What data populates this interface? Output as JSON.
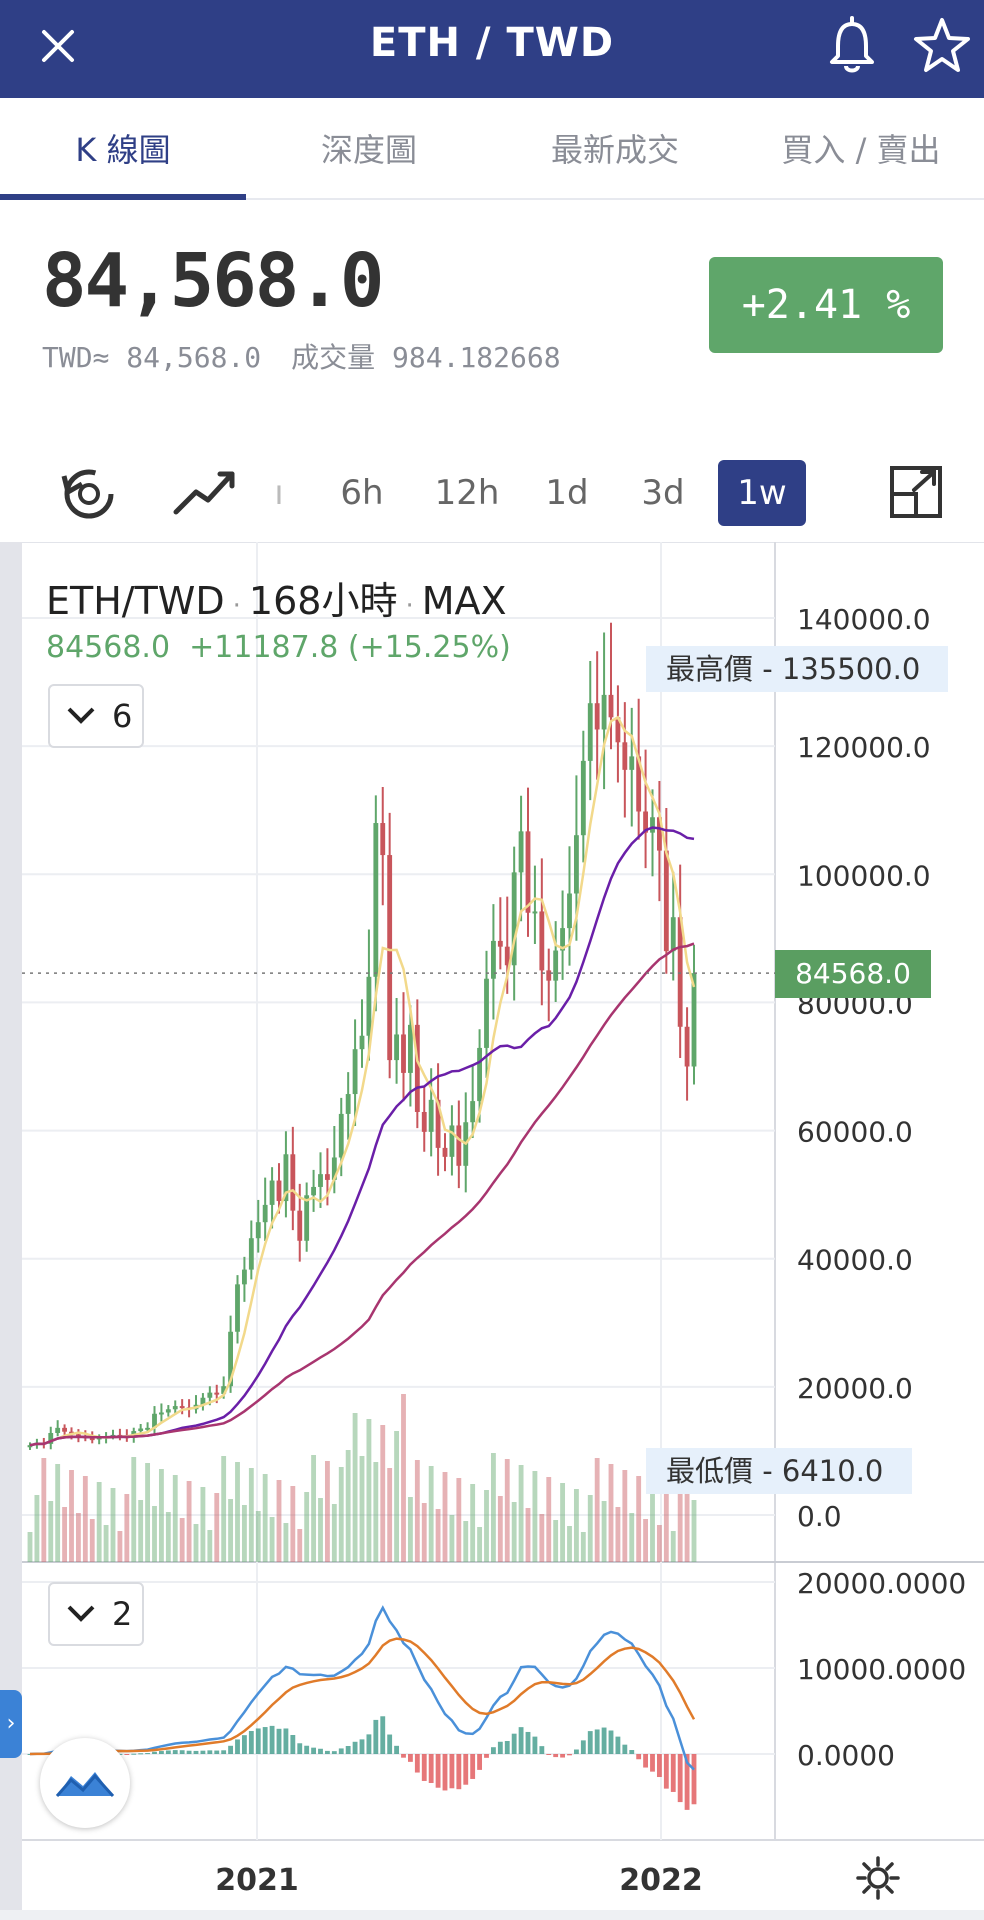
{
  "header": {
    "title": "ETH / TWD",
    "close_icon": "close-icon",
    "bell_icon": "bell-icon",
    "star_icon": "star-icon"
  },
  "tabs": [
    {
      "label": "K 線圖",
      "active": true
    },
    {
      "label": "深度圖",
      "active": false
    },
    {
      "label": "最新成交",
      "active": false
    },
    {
      "label": "買入 / 賣出",
      "active": false
    }
  ],
  "price": {
    "last": "84,568.0",
    "twd_label": "TWD≈ 84,568.0",
    "volume_label": "成交量 984.182668",
    "change": "+2.41 %"
  },
  "toolbar": {
    "intervals": [
      {
        "label": "ı",
        "active": false
      },
      {
        "label": "6h",
        "active": false
      },
      {
        "label": "12h",
        "active": false
      },
      {
        "label": "1d",
        "active": false
      },
      {
        "label": "3d",
        "active": false
      },
      {
        "label": "1w",
        "active": true
      }
    ]
  },
  "legend": {
    "symbol": "ETH/TWD",
    "period": "168小時",
    "range": "MAX",
    "values": "84568.0  +11187.8 (+15.25%)",
    "main_indicator_count": "6",
    "sub_indicator_count": "2"
  },
  "labels": {
    "high": "最高價 - 135500.0",
    "low": "最低價 - 6410.0",
    "current_price": "84568.0"
  },
  "colors": {
    "header_bg": "#2f3f86",
    "up": "#5fa66a",
    "down": "#c8555b",
    "ma_short": "#f2d98b",
    "ma_mid": "#6a1fa8",
    "ma_long": "#a8356f",
    "macd_line": "#4a90d9",
    "signal_line": "#e07b2a"
  },
  "chart_data": {
    "type": "candlestick",
    "title": "ETH/TWD · 168小時 · MAX",
    "y_ticks": [
      "140000.0",
      "120000.0",
      "100000.0",
      "80000.0",
      "60000.0",
      "40000.0",
      "20000.0",
      "0.0"
    ],
    "ylim": [
      0,
      140000
    ],
    "x_ticks": [
      "2021",
      "2022"
    ],
    "sub_y_ticks": [
      "20000.0000",
      "10000.0000",
      "0.0000"
    ],
    "current": 84568.0,
    "high": 135500.0,
    "low": 6410.0,
    "closes": [
      10900,
      11300,
      11100,
      12800,
      13600,
      13000,
      12600,
      12300,
      12000,
      11800,
      12100,
      12300,
      12500,
      12300,
      12200,
      13100,
      13500,
      13600,
      15800,
      16000,
      16500,
      17000,
      16800,
      16500,
      17200,
      18300,
      19100,
      18900,
      20100,
      28600,
      36000,
      38300,
      43200,
      45700,
      48400,
      52200,
      49000,
      56300,
      47500,
      42800,
      49900,
      51200,
      53200,
      52300,
      55800,
      62600,
      65700,
      72700,
      74800,
      84000,
      108000,
      103000,
      71000,
      75000,
      69000,
      76500,
      62900,
      59800,
      64800,
      57300,
      55900,
      60800,
      54500,
      61300,
      64600,
      72900,
      83700,
      89600,
      88700,
      85800,
      100300,
      106700,
      94000,
      94200,
      85000,
      83400,
      88100,
      91600,
      97000,
      106100,
      117700,
      126700,
      122600,
      128000,
      124500,
      120600,
      116300,
      118400,
      109800,
      106500,
      108900,
      103700,
      88000,
      93300,
      76200,
      70000,
      84568
    ],
    "ma_short_color": "#f2d98b",
    "ma_mid_color": "#6a1fa8",
    "ma_long_color": "#a8356f"
  }
}
